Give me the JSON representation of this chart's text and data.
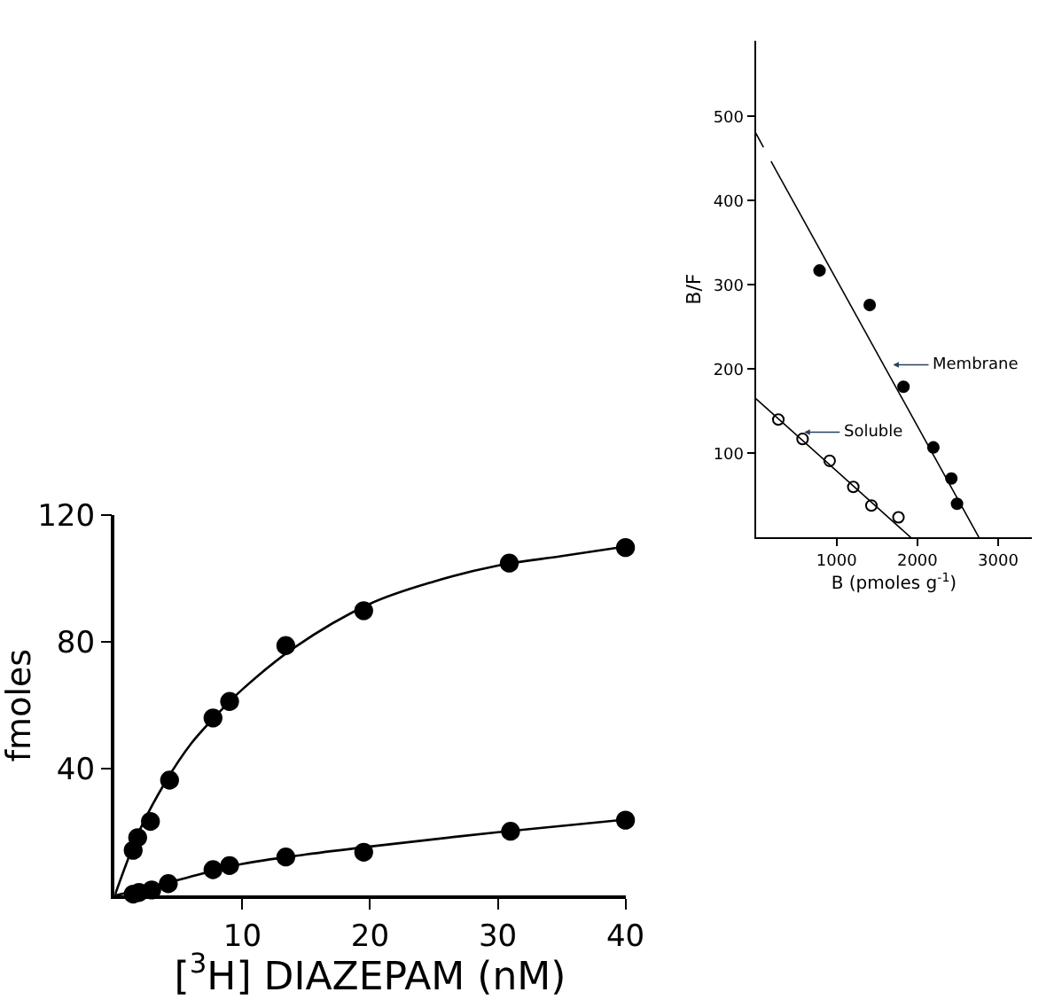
{
  "chart_data": [
    {
      "type": "scatter",
      "xlabel": "[$^{3}$H] DIAZEPAM (nM)",
      "ylabel": "fmoles",
      "xlim": [
        0,
        40
      ],
      "ylim": [
        0,
        120
      ],
      "xticks": [
        10,
        20,
        30,
        40
      ],
      "yticks": [
        40,
        80,
        120
      ],
      "marker": "circle",
      "series": [
        {
          "color": "#000000",
          "x": [
            1.45,
            1.8,
            2.8,
            4.3,
            7.7,
            9.0,
            13.4,
            19.5,
            30.9,
            40
          ],
          "values": [
            14.3,
            18.3,
            23.4,
            36.4,
            56,
            61.2,
            78.8,
            89.8,
            104.8,
            109.7
          ]
        },
        {
          "color": "#000000",
          "x": [
            1.45,
            1.9,
            2.9,
            4.2,
            7.7,
            9.0,
            13.4,
            19.5,
            31,
            40
          ],
          "values": [
            0.5,
            1,
            1.8,
            3.8,
            8.2,
            9.5,
            12.2,
            13.7,
            20.3,
            23.8
          ]
        },
        {
          "type": "line",
          "color": "#000000",
          "marker": "none",
          "x": [
            0,
            1,
            2,
            4,
            6,
            8,
            10,
            14,
            20,
            25,
            30,
            35,
            40
          ],
          "values": [
            0,
            11,
            21,
            36,
            48,
            57,
            65,
            78,
            92,
            99,
            104,
            107,
            110
          ]
        },
        {
          "type": "line",
          "color": "#000000",
          "marker": "none",
          "x": [
            0,
            2,
            5,
            10,
            15,
            20,
            30,
            40
          ],
          "values": [
            0,
            2,
            5,
            10,
            13,
            15.5,
            20,
            24
          ]
        }
      ]
    },
    {
      "type": "scatter",
      "xlabel": "B (pmoles g$^{-1}$)",
      "ylabel": "B/F",
      "xlim": [
        0,
        3420
      ],
      "ylim": [
        0,
        590
      ],
      "xticks": [
        1000,
        2000,
        3000
      ],
      "yticks": [
        100,
        200,
        300,
        400,
        500
      ],
      "marker": "circle",
      "series": [
        {
          "color": "#000000",
          "x": [
            789,
            1410,
            1828,
            2198,
            2421,
            2491
          ],
          "values": [
            317,
            276,
            179,
            107,
            70,
            40
          ]
        },
        {
          "color": "#000000",
          "marker": "circle-open",
          "x": [
            279,
            579,
            914,
            1207,
            1431,
            1766
          ],
          "values": [
            140,
            117,
            91,
            60,
            38,
            24
          ]
        },
        {
          "type": "line",
          "color": "#000000",
          "marker": "none",
          "line_style": "dashed",
          "x": [
            0,
            250
          ],
          "values": [
            480,
            436
          ]
        },
        {
          "type": "line",
          "color": "#000000",
          "marker": "none",
          "x": [
            250,
            2763
          ],
          "values": [
            436,
            0
          ]
        },
        {
          "type": "line",
          "color": "#000000",
          "marker": "none",
          "x": [
            0,
            1919
          ],
          "values": [
            165,
            0
          ]
        }
      ],
      "annotations": [
        {
          "text": "Membrane",
          "x": 1700,
          "y": 205
        },
        {
          "text": "Soluble",
          "x": 600,
          "y": 125
        }
      ]
    }
  ]
}
